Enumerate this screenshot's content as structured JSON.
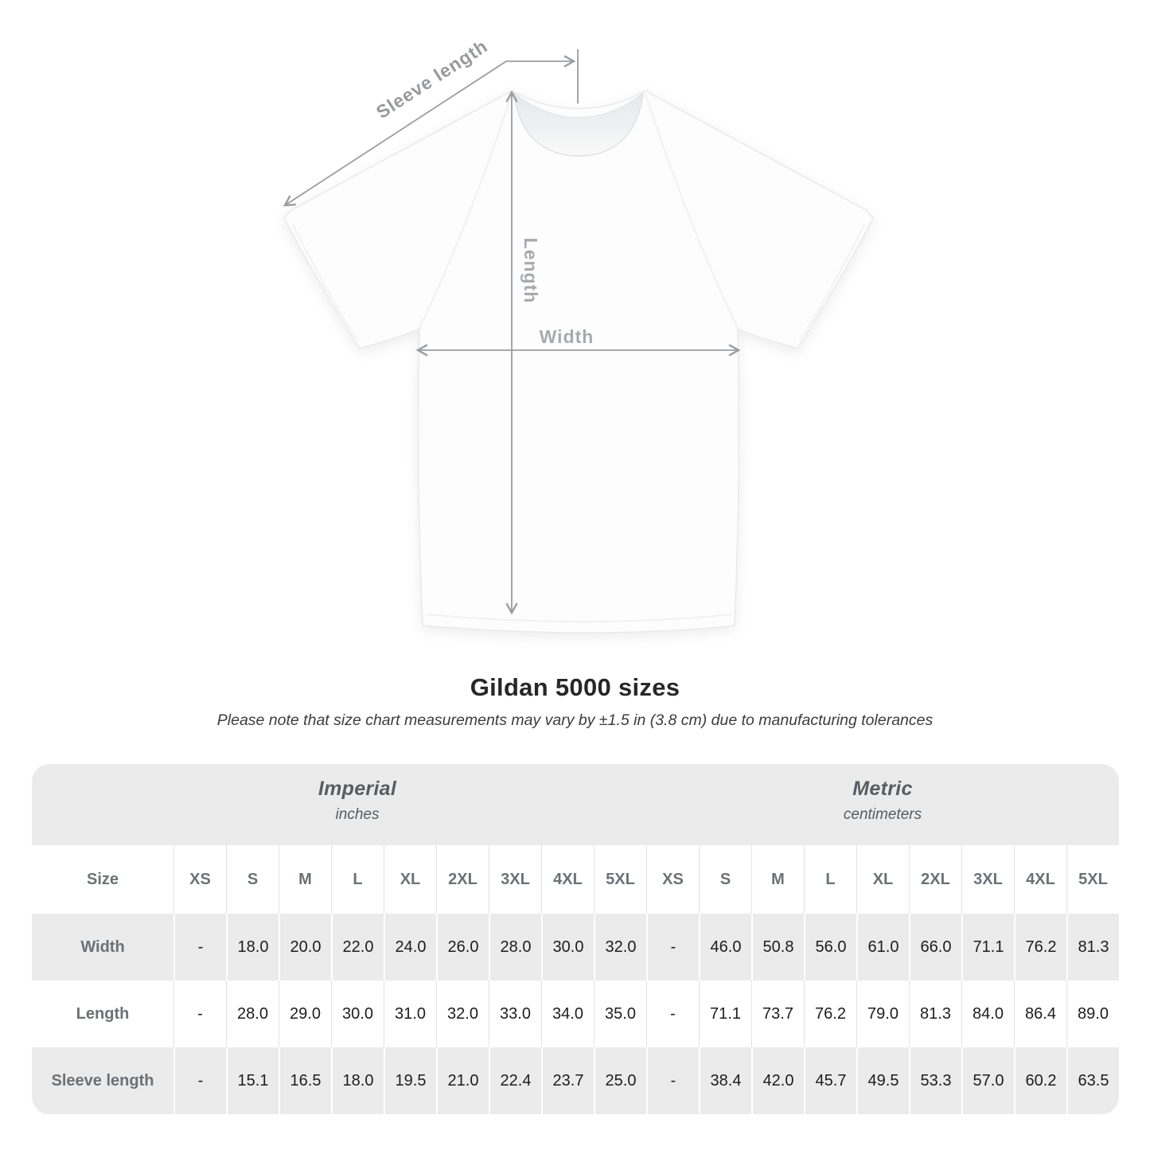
{
  "title": "Gildan 5000 sizes",
  "subtitle": "Please note that size chart measurements may vary by ±1.5 in (3.8 cm) due to manufacturing tolerances",
  "diagram": {
    "labels": {
      "sleeve_length": "Sleeve length",
      "length": "Length",
      "width": "Width"
    }
  },
  "table": {
    "sections": [
      {
        "label": "Imperial",
        "sublabel": "inches"
      },
      {
        "label": "Metric",
        "sublabel": "centimeters"
      }
    ],
    "size_header": "Size",
    "sizes": [
      "XS",
      "S",
      "M",
      "L",
      "XL",
      "2XL",
      "3XL",
      "4XL",
      "5XL"
    ],
    "rows": [
      {
        "label": "Width",
        "imperial": [
          "-",
          "18.0",
          "20.0",
          "22.0",
          "24.0",
          "26.0",
          "28.0",
          "30.0",
          "32.0"
        ],
        "metric": [
          "-",
          "46.0",
          "50.8",
          "56.0",
          "61.0",
          "66.0",
          "71.1",
          "76.2",
          "81.3"
        ]
      },
      {
        "label": "Length",
        "imperial": [
          "-",
          "28.0",
          "29.0",
          "30.0",
          "31.0",
          "32.0",
          "33.0",
          "34.0",
          "35.0"
        ],
        "metric": [
          "-",
          "71.1",
          "73.7",
          "76.2",
          "79.0",
          "81.3",
          "84.0",
          "86.4",
          "89.0"
        ]
      },
      {
        "label": "Sleeve length",
        "imperial": [
          "-",
          "15.1",
          "16.5",
          "18.0",
          "19.5",
          "21.0",
          "22.4",
          "23.7",
          "25.0"
        ],
        "metric": [
          "-",
          "38.4",
          "42.0",
          "45.7",
          "49.5",
          "53.3",
          "57.0",
          "60.2",
          "63.5"
        ]
      }
    ]
  },
  "colors": {
    "band_background": "#ebebeb",
    "band_text": "#565d63",
    "header_text": "#6b7177",
    "value_text": "#1d1d1d",
    "dimension_line": "#9b9da1",
    "dimension_label": "#a0a4a8"
  }
}
